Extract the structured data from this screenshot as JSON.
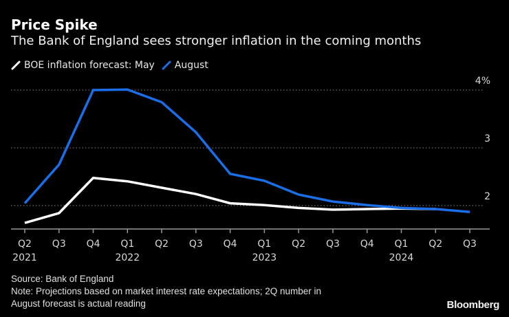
{
  "chart_data": {
    "type": "line",
    "title": "Price Spike",
    "subtitle": "The Bank of England sees stronger inflation in the coming months",
    "xlabel": "",
    "ylabel": "",
    "x": [
      "Q2 2021",
      "Q3 2021",
      "Q4 2021",
      "Q1 2022",
      "Q2 2022",
      "Q3 2022",
      "Q4 2022",
      "Q1 2023",
      "Q2 2023",
      "Q3 2023",
      "Q4 2023",
      "Q1 2024",
      "Q2 2024",
      "Q3 2024"
    ],
    "x_tick_labels": [
      {
        "q": "Q2",
        "year": "2021"
      },
      {
        "q": "Q3",
        "year": ""
      },
      {
        "q": "Q4",
        "year": ""
      },
      {
        "q": "Q1",
        "year": "2022"
      },
      {
        "q": "Q2",
        "year": ""
      },
      {
        "q": "Q3",
        "year": ""
      },
      {
        "q": "Q4",
        "year": ""
      },
      {
        "q": "Q1",
        "year": "2023"
      },
      {
        "q": "Q2",
        "year": ""
      },
      {
        "q": "Q3",
        "year": ""
      },
      {
        "q": "Q4",
        "year": ""
      },
      {
        "q": "Q1",
        "year": "2024"
      },
      {
        "q": "Q2",
        "year": ""
      },
      {
        "q": "Q3",
        "year": ""
      }
    ],
    "y_ticks": [
      {
        "value": 2,
        "label": "2"
      },
      {
        "value": 3,
        "label": "3"
      },
      {
        "value": 4,
        "label": "4%"
      }
    ],
    "ylim": [
      1.6,
      4.2
    ],
    "grid": true,
    "legend_position": "top-left",
    "series": [
      {
        "name": "BOE inflation forecast: May",
        "color": "#ffffff",
        "values": [
          1.7,
          1.87,
          2.48,
          2.42,
          2.31,
          2.2,
          2.04,
          2.01,
          1.96,
          1.93,
          1.94,
          1.95,
          1.94,
          null
        ]
      },
      {
        "name": "August",
        "color": "#1a6fe8",
        "values": [
          2.04,
          2.71,
          4.0,
          4.01,
          3.79,
          3.27,
          2.55,
          2.43,
          2.19,
          2.07,
          2.01,
          1.96,
          1.94,
          1.89
        ]
      }
    ]
  },
  "legend": {
    "may_label": "BOE inflation forecast: May",
    "august_label": "August"
  },
  "footer": {
    "source": "Source: Bank of England",
    "note_line1": "Note: Projections based on market interest rate expectations; 2Q number in",
    "note_line2": "August forecast is actual reading"
  },
  "brand": "Bloomberg"
}
